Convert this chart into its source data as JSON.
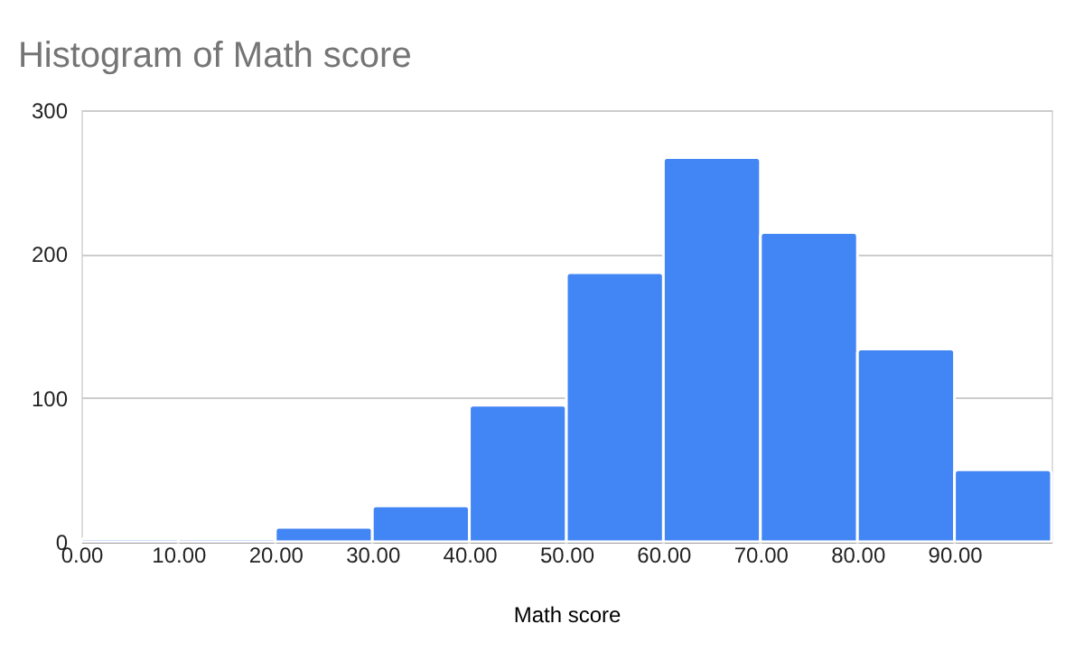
{
  "chart_data": {
    "type": "histogram",
    "title": "Histogram of Math score",
    "xlabel": "Math score",
    "bins": [
      0,
      10,
      20,
      30,
      40,
      50,
      60,
      70,
      80,
      90,
      100
    ],
    "values": [
      2,
      2,
      10,
      25,
      95,
      187,
      267,
      215,
      134,
      50
    ],
    "color": "#4285f4",
    "xlim": [
      0,
      100
    ],
    "xticks": [
      {
        "value": 0,
        "label": "0.00"
      },
      {
        "value": 10,
        "label": "10.00"
      },
      {
        "value": 20,
        "label": "20.00"
      },
      {
        "value": 30,
        "label": "30.00"
      },
      {
        "value": 40,
        "label": "40.00"
      },
      {
        "value": 50,
        "label": "50.00"
      },
      {
        "value": 60,
        "label": "60.00"
      },
      {
        "value": 70,
        "label": "70.00"
      },
      {
        "value": 80,
        "label": "80.00"
      },
      {
        "value": 90,
        "label": "90.00"
      }
    ],
    "ylim": [
      0,
      300
    ],
    "yticks": [
      0,
      100,
      200,
      300
    ],
    "grid": "y"
  }
}
